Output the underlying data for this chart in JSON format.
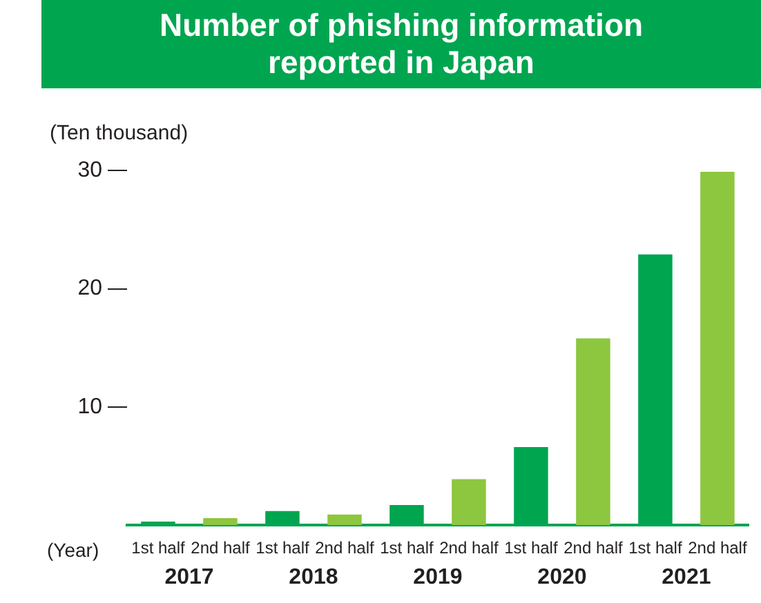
{
  "chart_data": {
    "type": "bar",
    "title": "Number of phishing information\nreported in Japan",
    "ylabel": "(Ten thousand)",
    "xlabel": "(Year)",
    "categories": [
      "1st half",
      "2nd half",
      "1st half",
      "2nd half",
      "1st half",
      "2nd half",
      "1st half",
      "2nd half",
      "1st half",
      "2nd half"
    ],
    "values": [
      0.3,
      0.6,
      1.2,
      0.9,
      1.7,
      3.9,
      6.6,
      15.8,
      22.9,
      29.9
    ],
    "colors": [
      "#00a550",
      "#8dc63f",
      "#00a550",
      "#8dc63f",
      "#00a550",
      "#8dc63f",
      "#00a550",
      "#8dc63f",
      "#00a550",
      "#8dc63f"
    ],
    "annotations": [
      "2017",
      "2018",
      "2019",
      "2020",
      "2021"
    ],
    "ylim": [
      0,
      30
    ],
    "yticks": [
      10,
      20,
      30
    ],
    "grid": false,
    "legend": false
  }
}
